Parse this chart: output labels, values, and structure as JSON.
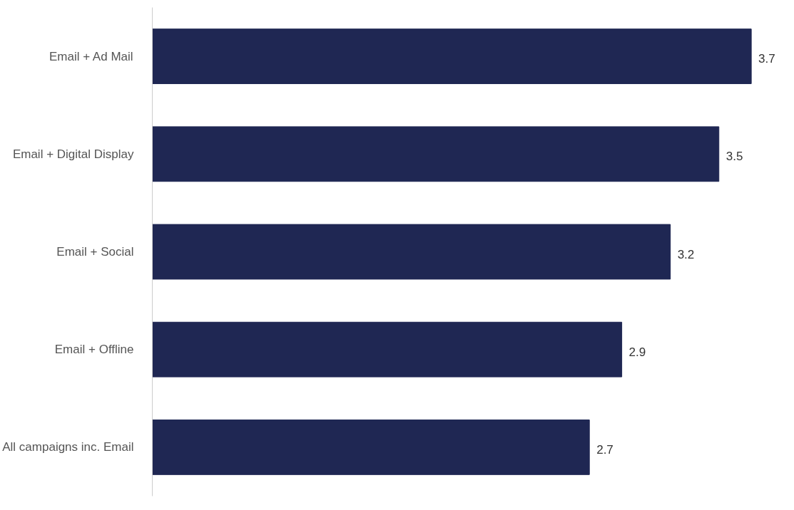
{
  "chart_data": {
    "type": "bar",
    "orientation": "horizontal",
    "categories": [
      "Email + Ad Mail",
      "Email + Digital Display",
      "Email + Social",
      "Email + Offline",
      "All campaigns inc. Email"
    ],
    "values": [
      3.7,
      3.5,
      3.2,
      2.9,
      2.7
    ],
    "color": "#1f2753",
    "data_labels": true,
    "tick_labels": "y"
  }
}
